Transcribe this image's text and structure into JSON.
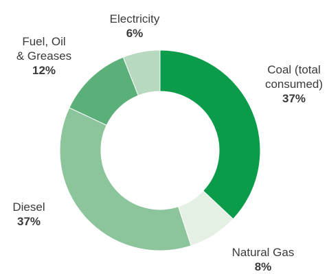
{
  "chart_data": {
    "type": "pie",
    "donut": true,
    "categories": [
      "Coal (total consumed)",
      "Natural Gas",
      "Diesel",
      "Fuel, Oil & Greases",
      "Electricity"
    ],
    "values": [
      37,
      8,
      37,
      12,
      6
    ],
    "value_labels": [
      "37%",
      "8%",
      "37%",
      "12%",
      "6%"
    ],
    "colors": [
      "#0a9c4a",
      "#e4f0e4",
      "#8cc49c",
      "#5bb07a",
      "#b7d9bf"
    ],
    "title": "",
    "legend": "none"
  },
  "labels": {
    "coal": {
      "line1": "Coal (total",
      "line2": "consumed)",
      "pct": "37%"
    },
    "gas": {
      "line1": "Natural Gas",
      "pct": "8%"
    },
    "diesel": {
      "line1": "Diesel",
      "pct": "37%"
    },
    "fuel": {
      "line1": "Fuel, Oil",
      "line2": "& Greases",
      "pct": "12%"
    },
    "electricity": {
      "line1": "Electricity",
      "pct": "6%"
    }
  }
}
